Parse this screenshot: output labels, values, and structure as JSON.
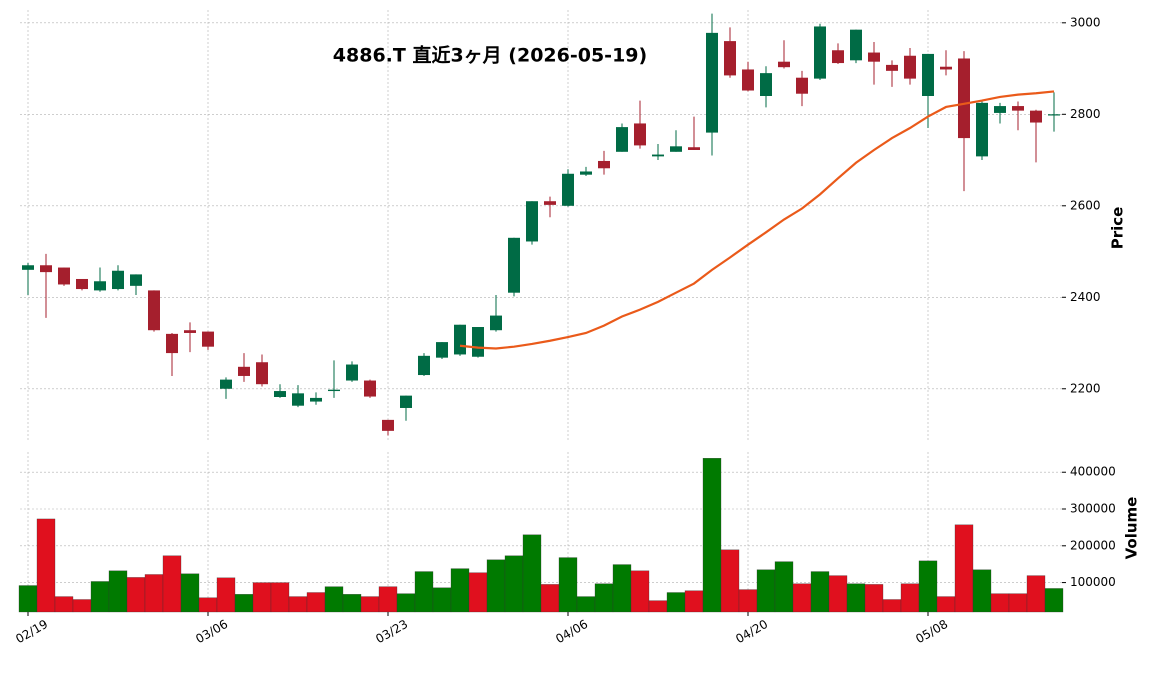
{
  "chart_data": [
    {
      "type": "candlestick",
      "title": "4886.T  直近3ヶ月  (2026-05-19)",
      "ylabel": "Price",
      "categories": [
        "02/19",
        null,
        null,
        null,
        null,
        null,
        null,
        null,
        null,
        null,
        "03/06",
        null,
        null,
        null,
        null,
        null,
        null,
        null,
        null,
        null,
        "03/23",
        null,
        null,
        null,
        null,
        null,
        null,
        null,
        null,
        null,
        "04/06",
        null,
        null,
        null,
        null,
        null,
        null,
        null,
        null,
        null,
        "04/20",
        null,
        null,
        null,
        null,
        null,
        null,
        null,
        null,
        null,
        "05/08",
        null,
        null,
        null,
        null,
        null,
        null,
        null
      ],
      "open": [
        2460,
        2470,
        2465,
        2440,
        2415,
        2418,
        2425,
        2415,
        2320,
        2328,
        2325,
        2200,
        2248,
        2258,
        2182,
        2163,
        2172,
        2195,
        2218,
        2218,
        2132,
        2158,
        2230,
        2268,
        2275,
        2270,
        2328,
        2410,
        2522,
        2610,
        2600,
        2668,
        2698,
        2718,
        2780,
        2708,
        2718,
        2728,
        2760,
        2960,
        2898,
        2840,
        2915,
        2880,
        2878,
        2940,
        2918,
        2935,
        2908,
        2928,
        2840,
        2904,
        2922,
        2708,
        2803,
        2818,
        2808,
        2798
      ],
      "high": [
        2475,
        2495,
        2465,
        2440,
        2465,
        2470,
        2450,
        2415,
        2322,
        2345,
        2325,
        2225,
        2278,
        2275,
        2210,
        2208,
        2192,
        2262,
        2260,
        2220,
        2132,
        2185,
        2278,
        2302,
        2340,
        2335,
        2405,
        2530,
        2610,
        2620,
        2680,
        2685,
        2720,
        2780,
        2830,
        2735,
        2765,
        2795,
        3020,
        2990,
        2915,
        2905,
        2962,
        2895,
        2998,
        2955,
        2985,
        2958,
        2918,
        2945,
        2932,
        2940,
        2938,
        2830,
        2825,
        2828,
        2810,
        2848
      ],
      "low": [
        2405,
        2355,
        2425,
        2415,
        2412,
        2415,
        2405,
        2325,
        2228,
        2280,
        2285,
        2178,
        2215,
        2205,
        2180,
        2160,
        2165,
        2180,
        2215,
        2180,
        2098,
        2130,
        2228,
        2265,
        2272,
        2268,
        2325,
        2402,
        2515,
        2575,
        2598,
        2665,
        2668,
        2718,
        2725,
        2700,
        2718,
        2722,
        2710,
        2880,
        2850,
        2815,
        2900,
        2818,
        2875,
        2910,
        2912,
        2865,
        2860,
        2865,
        2770,
        2885,
        2632,
        2700,
        2780,
        2765,
        2695,
        2762
      ],
      "close": [
        2470,
        2455,
        2428,
        2418,
        2435,
        2458,
        2450,
        2328,
        2278,
        2322,
        2292,
        2220,
        2228,
        2210,
        2195,
        2190,
        2180,
        2198,
        2253,
        2183,
        2108,
        2185,
        2272,
        2302,
        2340,
        2335,
        2360,
        2530,
        2610,
        2602,
        2670,
        2675,
        2682,
        2772,
        2732,
        2712,
        2730,
        2722,
        2978,
        2885,
        2852,
        2890,
        2903,
        2845,
        2992,
        2912,
        2985,
        2915,
        2895,
        2878,
        2932,
        2898,
        2748,
        2825,
        2818,
        2808,
        2782,
        2800
      ],
      "up_color": "#006b45",
      "down_color": "#a51f2d",
      "series": [
        {
          "color": "#ea5a1a",
          "values": [
            null,
            null,
            null,
            null,
            null,
            null,
            null,
            null,
            null,
            null,
            null,
            null,
            null,
            null,
            null,
            null,
            null,
            null,
            null,
            null,
            null,
            null,
            null,
            null,
            2294,
            2290,
            2288,
            2292,
            2298,
            2305,
            2313,
            2322,
            2338,
            2358,
            2373,
            2390,
            2410,
            2430,
            2460,
            2487,
            2515,
            2542,
            2570,
            2594,
            2625,
            2660,
            2694,
            2722,
            2748,
            2770,
            2795,
            2816,
            2823,
            2830,
            2838,
            2843,
            2846,
            2850
          ]
        }
      ],
      "ylim": [
        2088,
        3028
      ],
      "yticks": [
        2200,
        2400,
        2600,
        2800,
        3000
      ],
      "grid": true
    },
    {
      "type": "bar",
      "ylabel": "Volume",
      "values": [
        92000,
        273000,
        62000,
        54000,
        103000,
        132000,
        114000,
        122000,
        173000,
        124000,
        59000,
        113000,
        68000,
        100000,
        100000,
        62000,
        73000,
        89000,
        68000,
        62000,
        89000,
        70000,
        130000,
        86000,
        138000,
        127000,
        162000,
        173000,
        230000,
        95000,
        168000,
        62000,
        97000,
        149000,
        132000,
        51000,
        73000,
        78000,
        438000,
        189000,
        81000,
        135000,
        157000,
        97000,
        130000,
        119000,
        97000,
        95000,
        54000,
        97000,
        159000,
        62000,
        257000,
        135000,
        70000,
        70000,
        119000,
        84000
      ],
      "up_color": "#007a00",
      "down_color": "#e0101e",
      "ylim": [
        20000,
        455000
      ],
      "yticks": [
        100000,
        200000,
        300000,
        400000
      ],
      "grid": true
    }
  ]
}
